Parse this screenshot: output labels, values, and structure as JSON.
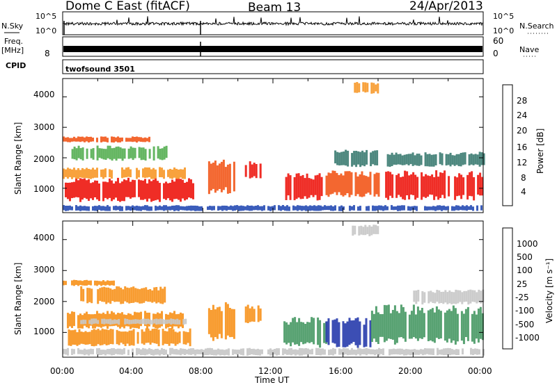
{
  "header": {
    "station": "Dome C East (fitACF)",
    "beam": "Beam 13",
    "date": "24/Apr/2013"
  },
  "top_panels": {
    "nsky_label": "N.Sky",
    "nsky_ticks": [
      "10^5",
      "10^0"
    ],
    "nsearch_label": "N.Search",
    "nsearch_ticks": [
      "10^5",
      "10^0"
    ],
    "freq_label_1": "Freq.",
    "freq_label_2": "[MHz]",
    "freq_tick": "8",
    "nave_label": "Nave",
    "nave_ticks": [
      "60",
      "0"
    ],
    "cpid_label": "CPID",
    "cpid_value": "twofsound 3501"
  },
  "x_axis": {
    "title": "Time UT",
    "ticks": [
      "00:00",
      "04:00",
      "08:00",
      "12:00",
      "16:00",
      "20:00",
      "00:00"
    ]
  },
  "power_panel": {
    "ylabel": "Slant Range [km]",
    "yticks": [
      "4000",
      "3000",
      "2000",
      "1000"
    ],
    "colorbar_label": "Power [dB]",
    "colorbar_ticks": [
      "28",
      "24",
      "20",
      "16",
      "12",
      "8",
      "4"
    ]
  },
  "velocity_panel": {
    "ylabel": "Slant Range [km]",
    "yticks": [
      "4000",
      "3000",
      "2000",
      "1000"
    ],
    "colorbar_label": "Velocity [m s⁻¹]",
    "colorbar_ticks": [
      "1000",
      "500",
      "100",
      "25",
      "-25",
      "-100",
      "-500",
      "-1000"
    ]
  },
  "chart_data": [
    {
      "type": "heatmap",
      "quantity": "Power [dB]",
      "x_unit": "hours UT",
      "xlim": [
        0,
        24
      ],
      "ylim": [
        200,
        4600
      ],
      "color_scale": [
        {
          "min": 0,
          "max": 4,
          "color": "#1b1bf5"
        },
        {
          "min": 4,
          "max": 8,
          "color": "#2a4fb5"
        },
        {
          "min": 8,
          "max": 12,
          "color": "#3f7e74"
        },
        {
          "min": 12,
          "max": 16,
          "color": "#58b055"
        },
        {
          "min": 16,
          "max": 20,
          "color": "#e8d23a"
        },
        {
          "min": 20,
          "max": 24,
          "color": "#f79a2c"
        },
        {
          "min": 24,
          "max": 28,
          "color": "#f25a1e"
        },
        {
          "min": 28,
          "max": 32,
          "color": "#ee1b14"
        }
      ],
      "regions": [
        {
          "t0": 0.0,
          "t1": 7.5,
          "r0": 550,
          "r1": 1350,
          "color": "#ee1b14"
        },
        {
          "t0": 0.0,
          "t1": 7.0,
          "r0": 1300,
          "r1": 1700,
          "color": "#f79a2c"
        },
        {
          "t0": 0.0,
          "t1": 5.0,
          "r0": 2500,
          "r1": 2700,
          "color": "#f25a1e"
        },
        {
          "t0": 0.5,
          "t1": 6.0,
          "r0": 1900,
          "r1": 2400,
          "color": "#58b055"
        },
        {
          "t0": 8.3,
          "t1": 9.8,
          "r0": 800,
          "r1": 2000,
          "color": "#f25a1e"
        },
        {
          "t0": 10.4,
          "t1": 11.3,
          "r0": 1300,
          "r1": 1900,
          "color": "#ee1b14"
        },
        {
          "t0": 12.7,
          "t1": 14.8,
          "r0": 600,
          "r1": 1500,
          "color": "#ee1b14"
        },
        {
          "t0": 15.0,
          "t1": 18.0,
          "r0": 700,
          "r1": 1600,
          "color": "#f25a1e"
        },
        {
          "t0": 15.5,
          "t1": 18.0,
          "r0": 1700,
          "r1": 2300,
          "color": "#3f7e74"
        },
        {
          "t0": 18.4,
          "t1": 24.0,
          "r0": 600,
          "r1": 1600,
          "color": "#ee1b14"
        },
        {
          "t0": 18.5,
          "t1": 24.0,
          "r0": 1700,
          "r1": 2200,
          "color": "#3f7e74"
        },
        {
          "t0": 16.5,
          "t1": 18.0,
          "r0": 4100,
          "r1": 4500,
          "color": "#f79a2c"
        },
        {
          "t0": 0.0,
          "t1": 24.0,
          "r0": 250,
          "r1": 450,
          "color": "#2a4fb5"
        }
      ]
    },
    {
      "type": "heatmap",
      "quantity": "Velocity [m s^-1]",
      "x_unit": "hours UT",
      "xlim": [
        0,
        24
      ],
      "ylim": [
        200,
        4600
      ],
      "color_scale": [
        {
          "min": 500,
          "max": 1000,
          "color": "#2b3fae"
        },
        {
          "min": 100,
          "max": 500,
          "color": "#3b6e8e"
        },
        {
          "min": 25,
          "max": 100,
          "color": "#4a9a66"
        },
        {
          "min": -25,
          "max": 25,
          "color": "#c8c8c8"
        },
        {
          "min": -100,
          "max": -25,
          "color": "#f7b23a"
        },
        {
          "min": -500,
          "max": -100,
          "color": "#f7941e"
        },
        {
          "min": -1000,
          "max": -500,
          "color": "#f04e1c"
        }
      ],
      "regions": [
        {
          "t0": 0.3,
          "t1": 7.3,
          "r0": 550,
          "r1": 1150,
          "color": "#f7941e"
        },
        {
          "t0": 0.0,
          "t1": 7.0,
          "r0": 1100,
          "r1": 1700,
          "color": "#f7941e"
        },
        {
          "t0": 1.0,
          "t1": 7.0,
          "r0": 1250,
          "r1": 1450,
          "color": "#c8c8c8"
        },
        {
          "t0": 0.0,
          "t1": 3.0,
          "r0": 2500,
          "r1": 2700,
          "color": "#f7941e"
        },
        {
          "t0": 1.0,
          "t1": 6.0,
          "r0": 1900,
          "r1": 2500,
          "color": "#f7941e"
        },
        {
          "t0": 8.3,
          "t1": 9.8,
          "r0": 700,
          "r1": 2000,
          "color": "#f7941e"
        },
        {
          "t0": 10.4,
          "t1": 11.3,
          "r0": 1300,
          "r1": 1900,
          "color": "#f7941e"
        },
        {
          "t0": 12.6,
          "t1": 15.0,
          "r0": 500,
          "r1": 1500,
          "color": "#4a9a66"
        },
        {
          "t0": 15.0,
          "t1": 17.6,
          "r0": 500,
          "r1": 1500,
          "color": "#2b3fae"
        },
        {
          "t0": 17.6,
          "t1": 24.0,
          "r0": 600,
          "r1": 1900,
          "color": "#4a9a66"
        },
        {
          "t0": 20.0,
          "t1": 24.0,
          "r0": 1900,
          "r1": 2400,
          "color": "#c8c8c8"
        },
        {
          "t0": 16.5,
          "t1": 18.0,
          "r0": 4100,
          "r1": 4500,
          "color": "#c8c8c8"
        },
        {
          "t0": 0.0,
          "t1": 24.0,
          "r0": 250,
          "r1": 500,
          "color": "#c8c8c8"
        }
      ]
    }
  ]
}
